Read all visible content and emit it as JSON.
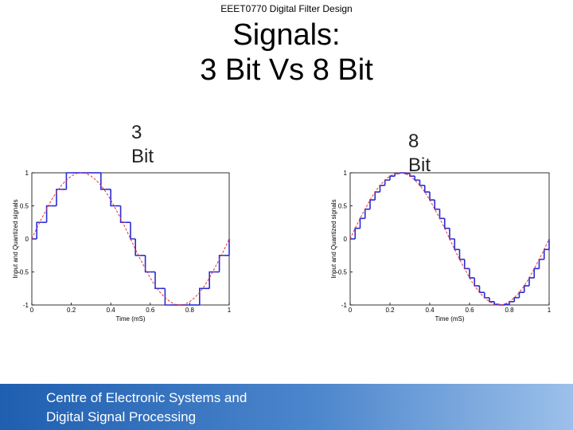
{
  "header": "EEET0770 Digital Filter Design",
  "title": [
    "Signals:",
    "3 Bit Vs 8 Bit"
  ],
  "footer": [
    "Centre of Electronic Systems and",
    "Digital Signal Processing"
  ],
  "chart_data": [
    {
      "type": "line",
      "title": "3 Bit",
      "x_label": "Time (mS)",
      "y_label": "Input and Quantized signals",
      "x": [
        0,
        0.025,
        0.05,
        0.075,
        0.1,
        0.125,
        0.15,
        0.175,
        0.2,
        0.225,
        0.25,
        0.275,
        0.3,
        0.325,
        0.35,
        0.375,
        0.4,
        0.425,
        0.45,
        0.475,
        0.5,
        0.525,
        0.55,
        0.575,
        0.6,
        0.625,
        0.65,
        0.675,
        0.7,
        0.725,
        0.75,
        0.775,
        0.8,
        0.825,
        0.85,
        0.875,
        0.9,
        0.925,
        0.95,
        0.975,
        1
      ],
      "series": [
        {
          "color": "#2b2bd6",
          "style": "step",
          "values": [
            0,
            0.25,
            0.25,
            0.5,
            0.5,
            0.75,
            0.75,
            1,
            1,
            1,
            1,
            1,
            1,
            1,
            0.75,
            0.75,
            0.5,
            0.5,
            0.25,
            0.25,
            0,
            -0.25,
            -0.25,
            -0.5,
            -0.5,
            -0.75,
            -0.75,
            -1,
            -1,
            -1,
            -1,
            -1,
            -1,
            -1,
            -0.75,
            -0.75,
            -0.5,
            -0.5,
            -0.25,
            -0.25,
            0
          ]
        },
        {
          "color": "#e03535",
          "style": "dashed",
          "values": [
            0,
            0.16,
            0.31,
            0.45,
            0.59,
            0.71,
            0.81,
            0.89,
            0.95,
            0.99,
            1,
            0.99,
            0.95,
            0.89,
            0.81,
            0.71,
            0.59,
            0.45,
            0.31,
            0.16,
            0,
            -0.16,
            -0.31,
            -0.45,
            -0.59,
            -0.71,
            -0.81,
            -0.89,
            -0.95,
            -0.99,
            -1,
            -0.99,
            -0.95,
            -0.89,
            -0.81,
            -0.71,
            -0.59,
            -0.45,
            -0.31,
            -0.16,
            0
          ]
        }
      ],
      "xlim": [
        0,
        1
      ],
      "xticks": [
        0,
        0.2,
        0.4,
        0.6,
        0.8,
        1
      ],
      "ylim": [
        -1,
        1
      ],
      "yticks": [
        -1,
        -0.5,
        0,
        0.5,
        1
      ]
    },
    {
      "type": "line",
      "title": "8 Bit",
      "x_label": "Time (mS)",
      "y_label": "Input and Quantized signals",
      "x": [
        0,
        0.025,
        0.05,
        0.075,
        0.1,
        0.125,
        0.15,
        0.175,
        0.2,
        0.225,
        0.25,
        0.275,
        0.3,
        0.325,
        0.35,
        0.375,
        0.4,
        0.425,
        0.45,
        0.475,
        0.5,
        0.525,
        0.55,
        0.575,
        0.6,
        0.625,
        0.65,
        0.675,
        0.7,
        0.725,
        0.75,
        0.775,
        0.8,
        0.825,
        0.85,
        0.875,
        0.9,
        0.925,
        0.95,
        0.975,
        1
      ],
      "series": [
        {
          "color": "#2b2bd6",
          "style": "step",
          "values": [
            0,
            0.16,
            0.31,
            0.45,
            0.59,
            0.71,
            0.81,
            0.89,
            0.95,
            0.99,
            1,
            0.99,
            0.95,
            0.89,
            0.81,
            0.71,
            0.59,
            0.45,
            0.31,
            0.16,
            0,
            -0.16,
            -0.31,
            -0.45,
            -0.59,
            -0.71,
            -0.81,
            -0.89,
            -0.95,
            -0.99,
            -1,
            -0.99,
            -0.95,
            -0.89,
            -0.81,
            -0.71,
            -0.59,
            -0.45,
            -0.31,
            -0.16,
            0
          ]
        },
        {
          "color": "#e03535",
          "style": "dashed",
          "values": [
            0,
            0.16,
            0.31,
            0.45,
            0.59,
            0.71,
            0.81,
            0.89,
            0.95,
            0.99,
            1,
            0.99,
            0.95,
            0.89,
            0.81,
            0.71,
            0.59,
            0.45,
            0.31,
            0.16,
            0,
            -0.16,
            -0.31,
            -0.45,
            -0.59,
            -0.71,
            -0.81,
            -0.89,
            -0.95,
            -0.99,
            -1,
            -0.99,
            -0.95,
            -0.89,
            -0.81,
            -0.71,
            -0.59,
            -0.45,
            -0.31,
            -0.16,
            0
          ]
        }
      ],
      "xlim": [
        0,
        1
      ],
      "xticks": [
        0,
        0.2,
        0.4,
        0.6,
        0.8,
        1
      ],
      "ylim": [
        -1,
        1
      ],
      "yticks": [
        -1,
        -0.5,
        0,
        0.5,
        1
      ]
    }
  ]
}
